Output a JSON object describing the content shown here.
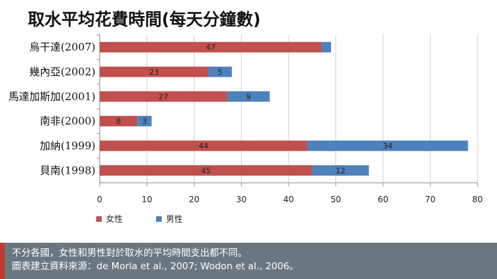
{
  "chart_data": {
    "type": "bar",
    "orientation": "horizontal",
    "stacked": true,
    "title": "取水平均花費時間(每天分鐘數)",
    "categories": [
      "烏干達(2007)",
      "幾內亞(2002)",
      "馬達加斯加(2001)",
      "南非(2000)",
      "加納(1999)",
      "貝南(1998)"
    ],
    "series": [
      {
        "name": "女性",
        "color": "#c0504d",
        "values": [
          47,
          23,
          27,
          8,
          44,
          45
        ]
      },
      {
        "name": "男性",
        "color": "#4f81bd",
        "values": [
          2,
          5,
          9,
          3,
          34,
          12
        ]
      }
    ],
    "value_labels": [
      [
        "47",
        "23",
        "27",
        "8",
        "44",
        "45"
      ],
      [
        "",
        "5",
        "9",
        "3",
        "34",
        "12"
      ]
    ],
    "xlim": [
      0,
      80
    ],
    "xticks": [
      0,
      10,
      20,
      30,
      40,
      50,
      60,
      70,
      80
    ],
    "grid": true,
    "legend": "bottom-left"
  },
  "footer": {
    "line1": "不分各國，女性和男性對於取水的平均時間支出都不同。",
    "line2": "圖表建立資料來源：de Moria et al., 2007; Wodon et al., 2006。"
  }
}
